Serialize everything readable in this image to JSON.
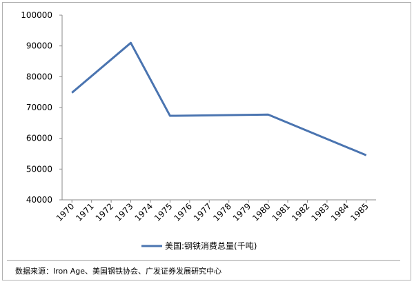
{
  "chart_data": {
    "type": "line",
    "x": [
      1970,
      1973,
      1975,
      1980,
      1985
    ],
    "series": [
      {
        "name": "美国:钢铁消费总量(千吨)",
        "color": "#4a74b0",
        "values": [
          74800,
          91000,
          67300,
          67700,
          54500
        ]
      }
    ],
    "xlim": [
      1969.5,
      1985.5
    ],
    "xticks": [
      1970,
      1971,
      1972,
      1973,
      1974,
      1975,
      1976,
      1977,
      1978,
      1979,
      1980,
      1981,
      1982,
      1983,
      1984,
      1985
    ],
    "ylim": [
      40000,
      100000
    ],
    "yticks": [
      40000,
      50000,
      60000,
      70000,
      80000,
      90000,
      100000
    ],
    "source": "数据来源：Iron Age、美国钢铁协会、广发证券发展研究中心"
  }
}
